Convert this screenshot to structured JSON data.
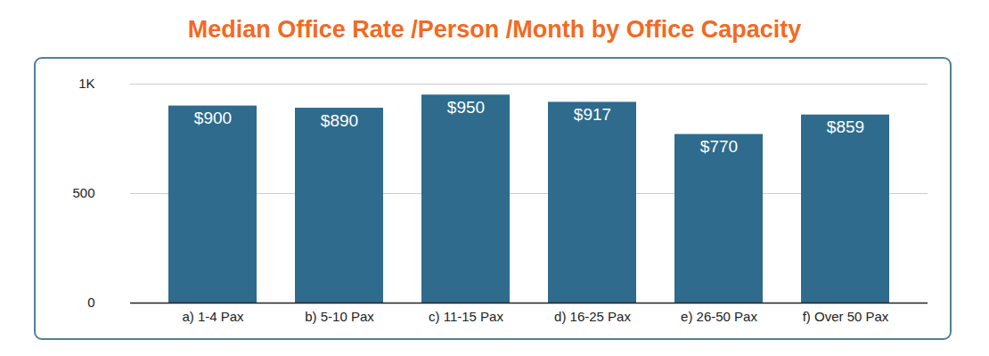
{
  "chart_data": {
    "type": "bar",
    "title": "Median Office Rate /Person /Month by Office Capacity",
    "categories": [
      "a) 1-4 Pax",
      "b) 5-10 Pax",
      "c) 11-15 Pax",
      "d) 16-25 Pax",
      "e) 26-50 Pax",
      "f) Over 50 Pax"
    ],
    "values": [
      900,
      890,
      950,
      917,
      770,
      859
    ],
    "value_labels": [
      "$900",
      "$890",
      "$950",
      "$917",
      "$770",
      "$859"
    ],
    "data_labels": true,
    "color": "#2e6b8c",
    "ylim": [
      0,
      1000
    ],
    "yticks": [
      0,
      500,
      {
        "value": 1000,
        "label": "1K"
      }
    ],
    "grid": true
  }
}
